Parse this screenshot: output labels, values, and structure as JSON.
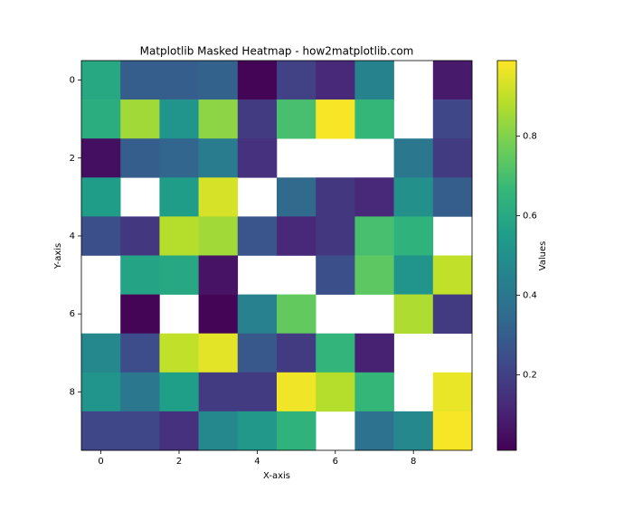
{
  "chart_data": {
    "type": "heatmap",
    "title": "Matplotlib Masked Heatmap - how2matplotlib.com",
    "xlabel": "X-axis",
    "ylabel": "Y-axis",
    "colorbar_label": "Values",
    "colormap": "viridis",
    "values": [
      [
        0.6,
        0.3,
        0.3,
        0.32,
        0.02,
        0.2,
        0.12,
        0.45,
        null,
        0.08
      ],
      [
        0.62,
        0.85,
        0.52,
        0.82,
        0.18,
        0.7,
        0.98,
        0.66,
        null,
        0.22
      ],
      [
        0.05,
        0.3,
        0.33,
        0.42,
        0.15,
        null,
        null,
        null,
        0.4,
        0.18
      ],
      [
        0.55,
        null,
        0.55,
        0.93,
        null,
        0.35,
        0.17,
        0.12,
        0.5,
        0.3
      ],
      [
        0.25,
        0.17,
        0.88,
        0.85,
        0.27,
        0.12,
        0.17,
        0.7,
        0.64,
        null
      ],
      [
        null,
        0.58,
        0.6,
        0.06,
        null,
        null,
        0.25,
        0.74,
        0.52,
        0.9
      ],
      [
        null,
        0.02,
        null,
        0.02,
        0.44,
        0.75,
        null,
        null,
        0.87,
        0.18
      ],
      [
        0.47,
        0.24,
        0.9,
        0.95,
        0.28,
        0.18,
        0.65,
        0.1,
        null,
        null
      ],
      [
        0.52,
        0.4,
        0.56,
        0.18,
        0.18,
        0.97,
        0.88,
        0.66,
        null,
        0.96
      ],
      [
        0.22,
        0.22,
        0.15,
        0.47,
        0.53,
        0.64,
        null,
        0.38,
        0.47,
        0.98
      ]
    ],
    "xlim": [
      -0.5,
      9.5
    ],
    "ylim": [
      9.5,
      -0.5
    ],
    "xticks": [
      0,
      2,
      4,
      6,
      8
    ],
    "yticks": [
      0,
      2,
      4,
      6,
      8
    ],
    "clim": [
      0.01,
      0.99
    ],
    "cticks": [
      0.2,
      0.4,
      0.6,
      0.8
    ]
  }
}
